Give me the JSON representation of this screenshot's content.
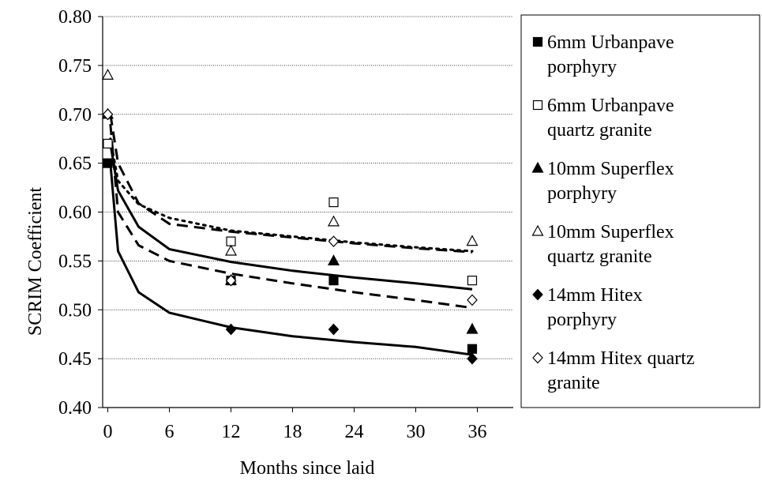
{
  "chart_data": {
    "type": "scatter",
    "xlabel": "Months since laid",
    "ylabel": "SCRIM Coefficient",
    "xlim": [
      -0.5,
      39.5
    ],
    "ylim": [
      0.4,
      0.8
    ],
    "xticks": [
      0,
      6,
      12,
      18,
      24,
      30,
      36
    ],
    "yticks": [
      0.4,
      0.45,
      0.5,
      0.55,
      0.6,
      0.65,
      0.7,
      0.75,
      0.8
    ],
    "xtick_labels": [
      "0",
      "6",
      "12",
      "18",
      "24",
      "30",
      "36"
    ],
    "ytick_labels": [
      "0.40",
      "0.45",
      "0.50",
      "0.55",
      "0.60",
      "0.65",
      "0.70",
      "0.75",
      "0.80"
    ],
    "grid": "horizontal",
    "legend_position": "right",
    "series": [
      {
        "name": "6mm Urbanpave porphyry",
        "legend_lines": [
          "6mm Urbanpave",
          "porphyry"
        ],
        "marker": "square-filled",
        "x": [
          0,
          12,
          22,
          35.5
        ],
        "y": [
          0.65,
          0.53,
          0.53,
          0.46
        ]
      },
      {
        "name": "6mm Urbanpave quartz granite",
        "legend_lines": [
          "6mm Urbanpave",
          "quartz granite"
        ],
        "marker": "square-open",
        "x": [
          0,
          12,
          22,
          35.5
        ],
        "y": [
          0.67,
          0.57,
          0.61,
          0.53
        ]
      },
      {
        "name": "10mm Superflex porphyry",
        "legend_lines": [
          "10mm Superflex",
          "porphyry"
        ],
        "marker": "triangle-filled",
        "x": [
          0,
          12,
          22,
          35.5
        ],
        "y": [
          0.7,
          0.53,
          0.55,
          0.48
        ]
      },
      {
        "name": "10mm Superflex quartz granite",
        "legend_lines": [
          "10mm Superflex",
          "quartz granite"
        ],
        "marker": "triangle-open",
        "x": [
          0,
          12,
          22,
          35.5
        ],
        "y": [
          0.74,
          0.56,
          0.59,
          0.57
        ]
      },
      {
        "name": "14mm Hitex porphyry",
        "legend_lines": [
          "14mm Hitex",
          "porphyry"
        ],
        "marker": "diamond-filled",
        "x": [
          0,
          12,
          22,
          35.5
        ],
        "y": [
          0.7,
          0.48,
          0.48,
          0.45
        ]
      },
      {
        "name": "14mm Hitex quartz granite",
        "legend_lines": [
          "14mm Hitex quartz",
          "granite"
        ],
        "marker": "diamond-open",
        "x": [
          0,
          12,
          22,
          35.5
        ],
        "y": [
          0.7,
          0.53,
          0.57,
          0.51
        ]
      }
    ],
    "trendlines": [
      {
        "style": "solid",
        "points": [
          [
            0.25,
            0.65
          ],
          [
            1,
            0.56
          ],
          [
            3,
            0.518
          ],
          [
            6,
            0.497
          ],
          [
            12,
            0.482
          ],
          [
            18,
            0.473
          ],
          [
            24,
            0.467
          ],
          [
            30,
            0.462
          ],
          [
            35.5,
            0.454
          ]
        ]
      },
      {
        "style": "solid",
        "points": [
          [
            0.25,
            0.67
          ],
          [
            1,
            0.622
          ],
          [
            3,
            0.585
          ],
          [
            6,
            0.562
          ],
          [
            12,
            0.549
          ],
          [
            18,
            0.54
          ],
          [
            24,
            0.533
          ],
          [
            30,
            0.527
          ],
          [
            35.5,
            0.521
          ]
        ]
      },
      {
        "style": "dashed",
        "points": [
          [
            0.25,
            0.7
          ],
          [
            1,
            0.65
          ],
          [
            3,
            0.609
          ],
          [
            6,
            0.588
          ],
          [
            12,
            0.58
          ],
          [
            18,
            0.574
          ],
          [
            24,
            0.568
          ],
          [
            30,
            0.563
          ],
          [
            35.5,
            0.559
          ]
        ]
      },
      {
        "style": "dashed",
        "points": [
          [
            0.25,
            0.69
          ],
          [
            1,
            0.6
          ],
          [
            3,
            0.566
          ],
          [
            6,
            0.55
          ],
          [
            12,
            0.537
          ],
          [
            18,
            0.527
          ],
          [
            24,
            0.518
          ],
          [
            30,
            0.51
          ],
          [
            35.5,
            0.502
          ]
        ]
      },
      {
        "style": "dotted",
        "points": [
          [
            0.25,
            0.675
          ],
          [
            1,
            0.632
          ],
          [
            3,
            0.608
          ],
          [
            6,
            0.594
          ],
          [
            12,
            0.581
          ],
          [
            18,
            0.575
          ],
          [
            24,
            0.569
          ],
          [
            30,
            0.564
          ],
          [
            35.5,
            0.56
          ]
        ]
      }
    ]
  }
}
